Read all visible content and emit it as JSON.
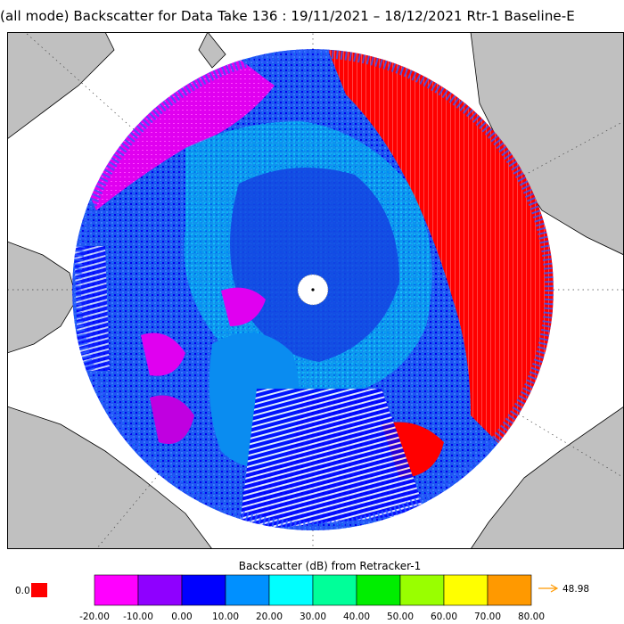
{
  "title": "(all mode) Backscatter for Data Take 136 : 19/11/2021 – 18/12/2021 Rtr-1 Baseline-E",
  "legend": {
    "title": "Backscatter (dB) from Retracker-1",
    "underflow_value": "0.0",
    "underflow_color": "#ff0000",
    "overflow_value": "48.98",
    "overflow_arrow_color": "#ff9900",
    "tick_labels": [
      "-20.00",
      "-10.00",
      "0.00",
      "10.00",
      "20.00",
      "30.00",
      "40.00",
      "50.00",
      "60.00",
      "70.00",
      "80.00"
    ],
    "color_bins": [
      "#ff00ff",
      "#8f00ff",
      "#0000ff",
      "#0090ff",
      "#00ffff",
      "#00ff99",
      "#00ee00",
      "#99ff00",
      "#ffff00",
      "#ff9900"
    ]
  },
  "map_colors": {
    "land": "#c0c0c0",
    "ocean": "#ffffff",
    "coastline": "#000000",
    "gridlines": "#444444"
  }
}
